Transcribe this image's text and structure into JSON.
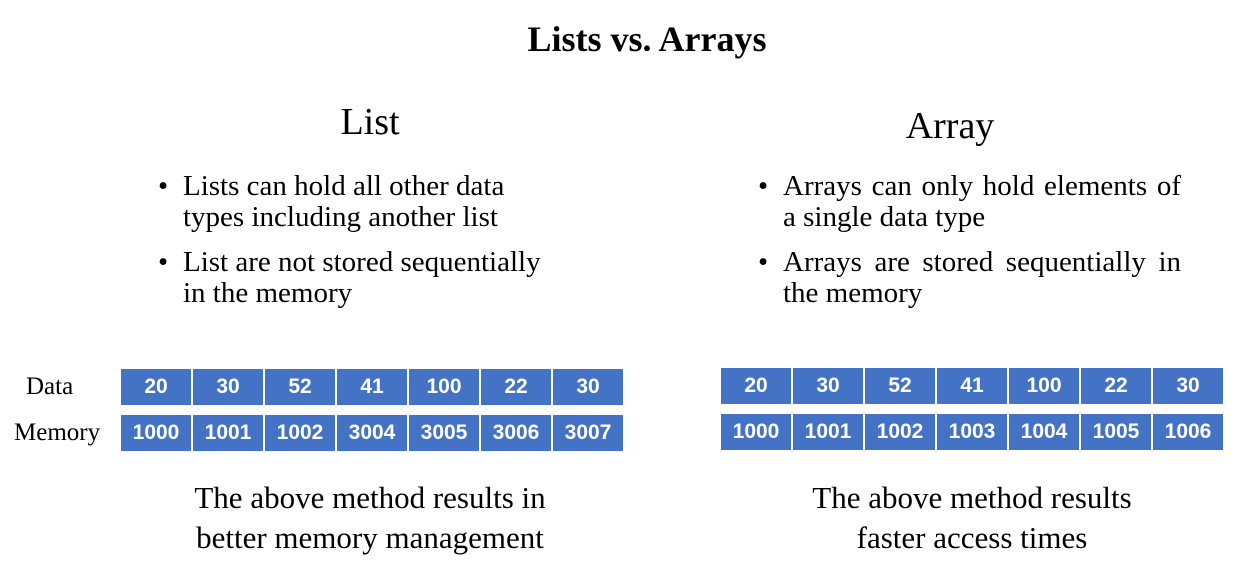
{
  "title": "Lists vs. Arrays",
  "list": {
    "heading": "List",
    "bullets": [
      "Lists can hold all other data types including another list",
      "List are not stored sequentially in the memory"
    ],
    "data_label": "Data",
    "memory_label": "Memory",
    "data": [
      "20",
      "30",
      "52",
      "41",
      "100",
      "22",
      "30"
    ],
    "memory": [
      "1000",
      "1001",
      "1002",
      "3004",
      "3005",
      "3006",
      "3007"
    ],
    "conclusion_line1": "The above method results in",
    "conclusion_line2": "better memory management"
  },
  "array": {
    "heading": "Array",
    "bullets": [
      "Arrays can only hold elements of a single data type",
      "Arrays are stored sequentially in the memory"
    ],
    "data": [
      "20",
      "30",
      "52",
      "41",
      "100",
      "22",
      "30"
    ],
    "memory": [
      "1000",
      "1001",
      "1002",
      "1003",
      "1004",
      "1005",
      "1006"
    ],
    "conclusion_line1": "The above method results",
    "conclusion_line2": "faster access times"
  },
  "colors": {
    "cell_fill": "#4472c4",
    "cell_text": "#ffffff"
  }
}
